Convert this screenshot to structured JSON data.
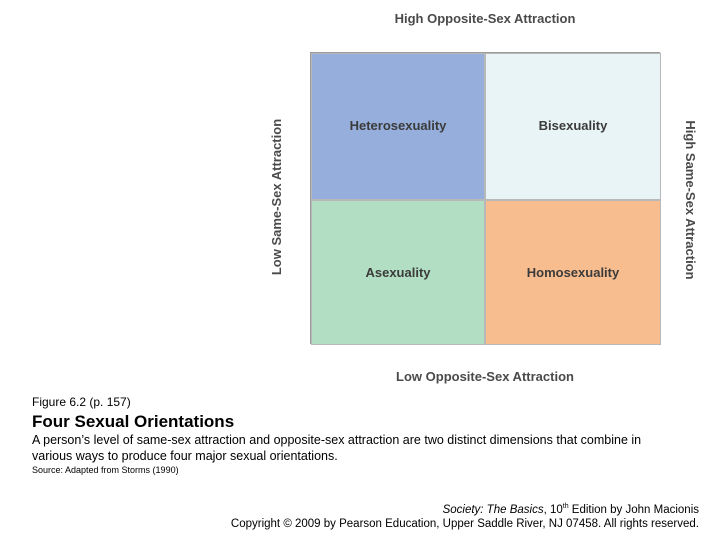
{
  "diagram": {
    "axis_top": "High Opposite-Sex Attraction",
    "axis_bottom": "Low Opposite-Sex Attraction",
    "axis_left": "Low Same-Sex Attraction",
    "axis_right": "High Same-Sex Attraction",
    "cells": [
      {
        "label": "Heterosexuality",
        "color": "#95aedb"
      },
      {
        "label": "Bisexuality",
        "color": "#e8f4f5"
      },
      {
        "label": "Asexuality",
        "color": "#b2dfc3"
      },
      {
        "label": "Homosexuality",
        "color": "#f8bd8f"
      }
    ]
  },
  "caption": {
    "figure_label": "Figure 6.2  (p. 157)",
    "title": "Four Sexual Orientations",
    "description": "A person’s level of same-sex attraction and opposite-sex attraction are two distinct dimensions that combine in various ways to produce four major sexual orientations.",
    "source": "Source: Adapted from Storms (1990)"
  },
  "credit": {
    "book_title": "Society: The Basics",
    "edition_pre": ", 10",
    "edition_sup": "th",
    "edition_post": " Edition by John Macionis",
    "copyright": "Copyright © 2009 by Pearson Education, Upper Saddle River, NJ 07458.  All rights reserved."
  }
}
